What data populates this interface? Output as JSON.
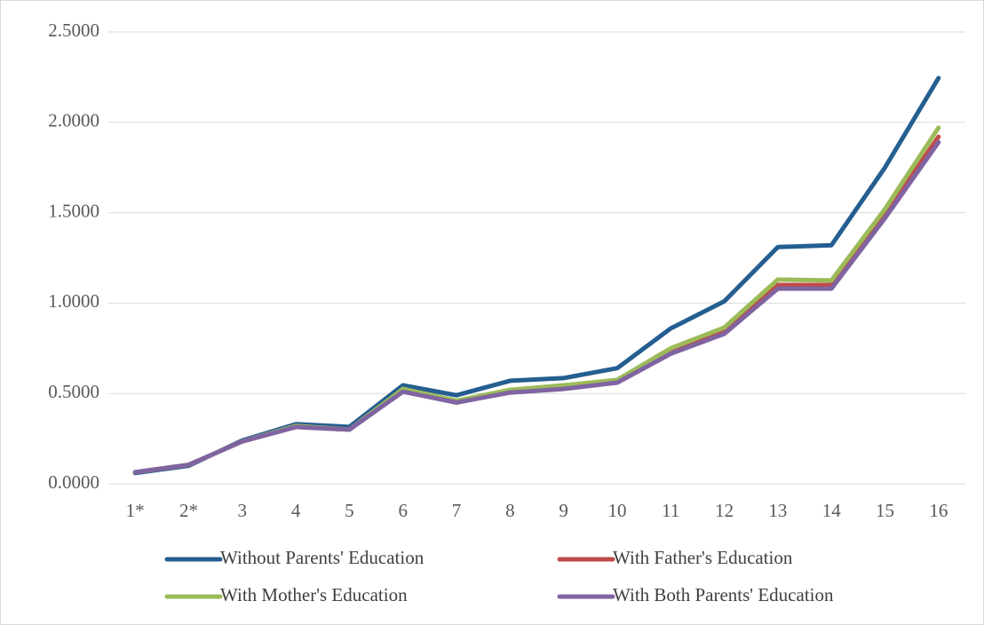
{
  "chart_data": {
    "type": "line",
    "categories": [
      "1*",
      "2*",
      "3",
      "4",
      "5",
      "6",
      "7",
      "8",
      "9",
      "10",
      "11",
      "12",
      "13",
      "14",
      "15",
      "16"
    ],
    "series": [
      {
        "name": "Without Parents' Education",
        "color": "#255e91",
        "values": [
          0.06,
          0.1,
          0.24,
          0.33,
          0.315,
          0.545,
          0.49,
          0.57,
          0.585,
          0.64,
          0.86,
          1.01,
          1.31,
          1.32,
          1.75,
          2.245
        ]
      },
      {
        "name": "With Father's Education",
        "color": "#be4b48",
        "values": [
          0.065,
          0.105,
          0.235,
          0.315,
          0.3,
          0.515,
          0.45,
          0.51,
          0.535,
          0.565,
          0.73,
          0.845,
          1.1,
          1.1,
          1.49,
          1.92
        ]
      },
      {
        "name": "With Mother's Education",
        "color": "#9bbb59",
        "values": [
          0.065,
          0.105,
          0.235,
          0.32,
          0.3,
          0.525,
          0.46,
          0.52,
          0.545,
          0.575,
          0.75,
          0.865,
          1.13,
          1.125,
          1.52,
          1.97
        ]
      },
      {
        "name": "With Both Parents' Education",
        "color": "#8064a2",
        "values": [
          0.065,
          0.105,
          0.235,
          0.315,
          0.3,
          0.51,
          0.45,
          0.505,
          0.525,
          0.56,
          0.72,
          0.83,
          1.08,
          1.08,
          1.47,
          1.89
        ]
      }
    ],
    "ylim": [
      0,
      2.5
    ],
    "yticks": [
      {
        "value": 0,
        "label": "0.0000"
      },
      {
        "value": 0.5,
        "label": "0.5000"
      },
      {
        "value": 1,
        "label": "1.0000"
      },
      {
        "value": 1.5,
        "label": "1.5000"
      },
      {
        "value": 2,
        "label": "2.0000"
      },
      {
        "value": 2.5,
        "label": "2.5000"
      }
    ],
    "grid": true
  }
}
